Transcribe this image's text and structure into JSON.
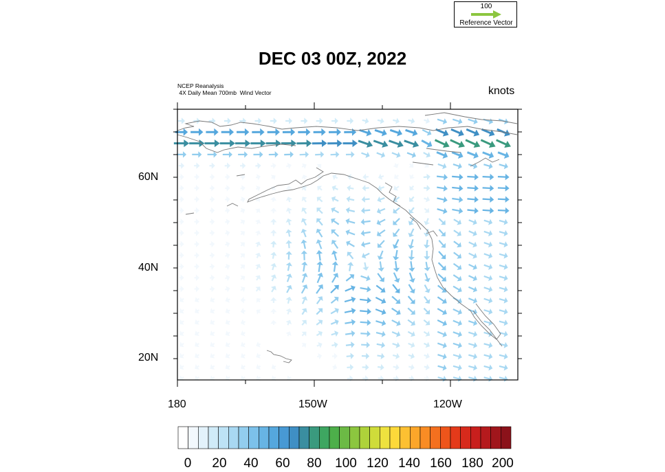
{
  "title": "DEC 03 00Z, 2022",
  "source_line1": "NCEP Reanalysis",
  "source_line2": " 4X Daily Mean 700mb  Wind Vector",
  "units": "knots",
  "reference_vector": {
    "value": "100",
    "label": "Reference Vector",
    "color": "#8cc63f"
  },
  "map": {
    "lat_labels": [
      "60N",
      "40N",
      "20N"
    ],
    "lon_labels": [
      "180",
      "150W",
      "120W"
    ],
    "lon_range": [
      -180,
      -107
    ],
    "lat_range": [
      15,
      75
    ]
  },
  "colorbar": {
    "labels": [
      "0",
      "20",
      "40",
      "60",
      "80",
      "100",
      "120",
      "140",
      "160",
      "180",
      "200"
    ],
    "colors": [
      "#ffffff",
      "#f2f8fd",
      "#e3f2fb",
      "#d0ebf8",
      "#bde2f5",
      "#a8d8f2",
      "#92cdee",
      "#7cc1ea",
      "#67b4e4",
      "#55a7dd",
      "#4899d4",
      "#3f8fc4",
      "#3a8ea0",
      "#3a9a7e",
      "#3ea661",
      "#4daf4a",
      "#6cba45",
      "#8cc63f",
      "#aed23a",
      "#cfdc3a",
      "#eee23f",
      "#fdd93a",
      "#fdc032",
      "#fca62a",
      "#f98c24",
      "#f4701f",
      "#ee551b",
      "#e43a1a",
      "#d72a1c",
      "#c81f1d",
      "#b51a1d",
      "#a0161c",
      "#8b121a"
    ]
  }
}
